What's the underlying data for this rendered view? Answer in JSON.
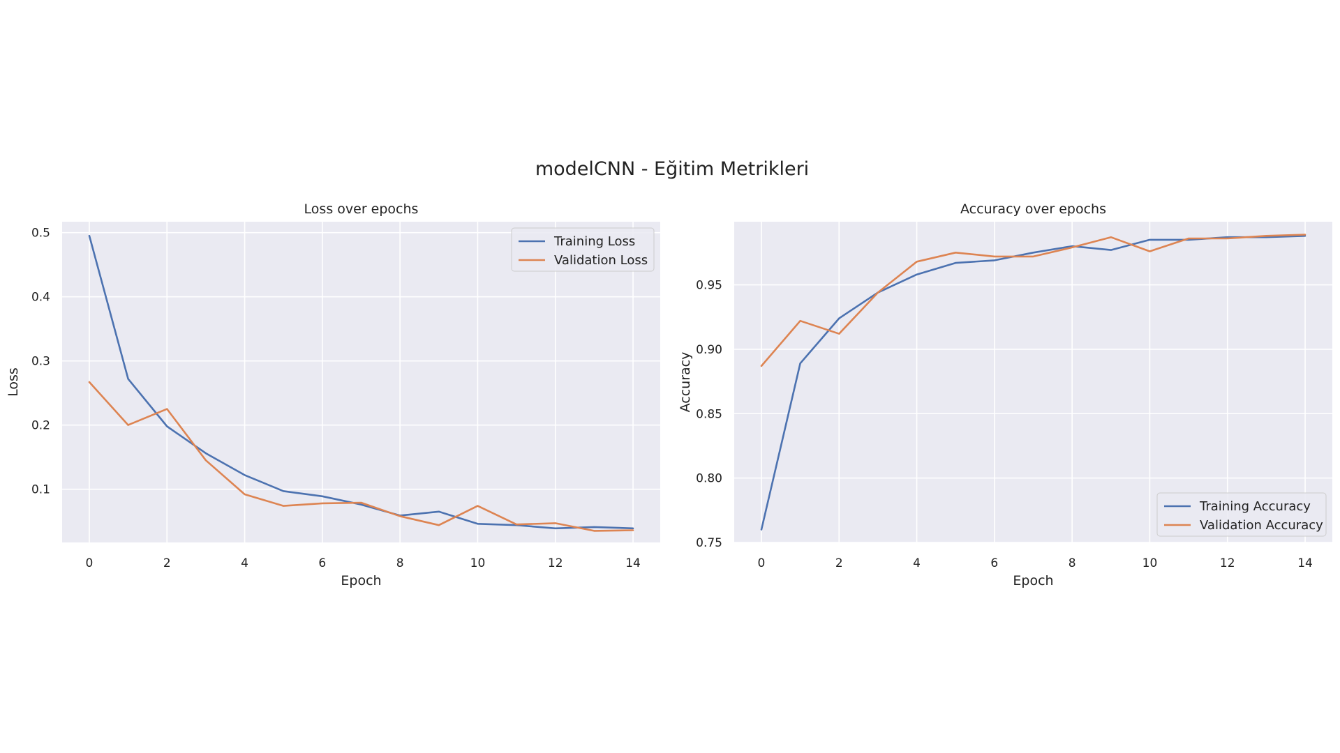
{
  "suptitle": "modelCNN - Eğitim Metrikleri",
  "colors": {
    "background": "#ffffff",
    "plot_bg": "#eaeaf2",
    "grid": "#ffffff",
    "training": "#4c72b0",
    "validation": "#dd8452"
  },
  "chart_data": [
    {
      "type": "line",
      "title": "Loss over epochs",
      "xlabel": "Epoch",
      "ylabel": "Loss",
      "xlim": [
        -0.7,
        14.7
      ],
      "ylim": [
        0.017,
        0.517
      ],
      "xticks": [
        0,
        2,
        4,
        6,
        8,
        10,
        12,
        14
      ],
      "xtick_labels": [
        "0",
        "2",
        "4",
        "6",
        "8",
        "10",
        "12",
        "14"
      ],
      "yticks": [
        0.1,
        0.2,
        0.3,
        0.4,
        0.5
      ],
      "ytick_labels": [
        "0.1",
        "0.2",
        "0.3",
        "0.4",
        "0.5"
      ],
      "grid": true,
      "legend_position": "top-right",
      "x": [
        0,
        1,
        2,
        3,
        4,
        5,
        6,
        7,
        8,
        9,
        10,
        11,
        12,
        13,
        14
      ],
      "series": [
        {
          "name": "Training Loss",
          "color": "#4c72b0",
          "values": [
            0.495,
            0.272,
            0.198,
            0.156,
            0.122,
            0.097,
            0.089,
            0.076,
            0.059,
            0.065,
            0.046,
            0.044,
            0.039,
            0.041,
            0.039
          ]
        },
        {
          "name": "Validation Loss",
          "color": "#dd8452",
          "values": [
            0.267,
            0.2,
            0.225,
            0.145,
            0.092,
            0.074,
            0.078,
            0.079,
            0.058,
            0.044,
            0.074,
            0.045,
            0.047,
            0.035,
            0.036
          ]
        }
      ]
    },
    {
      "type": "line",
      "title": "Accuracy over epochs",
      "xlabel": "Epoch",
      "ylabel": "Accuracy",
      "xlim": [
        -0.7,
        14.7
      ],
      "ylim": [
        0.75,
        0.999
      ],
      "xticks": [
        0,
        2,
        4,
        6,
        8,
        10,
        12,
        14
      ],
      "xtick_labels": [
        "0",
        "2",
        "4",
        "6",
        "8",
        "10",
        "12",
        "14"
      ],
      "yticks": [
        0.75,
        0.8,
        0.85,
        0.9,
        0.95
      ],
      "ytick_labels": [
        "0.75",
        "0.80",
        "0.85",
        "0.90",
        "0.95"
      ],
      "grid": true,
      "legend_position": "bottom-right",
      "x": [
        0,
        1,
        2,
        3,
        4,
        5,
        6,
        7,
        8,
        9,
        10,
        11,
        12,
        13,
        14
      ],
      "series": [
        {
          "name": "Training Accuracy",
          "color": "#4c72b0",
          "values": [
            0.76,
            0.889,
            0.924,
            0.944,
            0.958,
            0.967,
            0.969,
            0.975,
            0.98,
            0.977,
            0.985,
            0.985,
            0.987,
            0.987,
            0.988
          ]
        },
        {
          "name": "Validation Accuracy",
          "color": "#dd8452",
          "values": [
            0.887,
            0.922,
            0.912,
            0.944,
            0.968,
            0.975,
            0.972,
            0.972,
            0.979,
            0.987,
            0.976,
            0.986,
            0.986,
            0.988,
            0.989
          ]
        }
      ]
    }
  ]
}
